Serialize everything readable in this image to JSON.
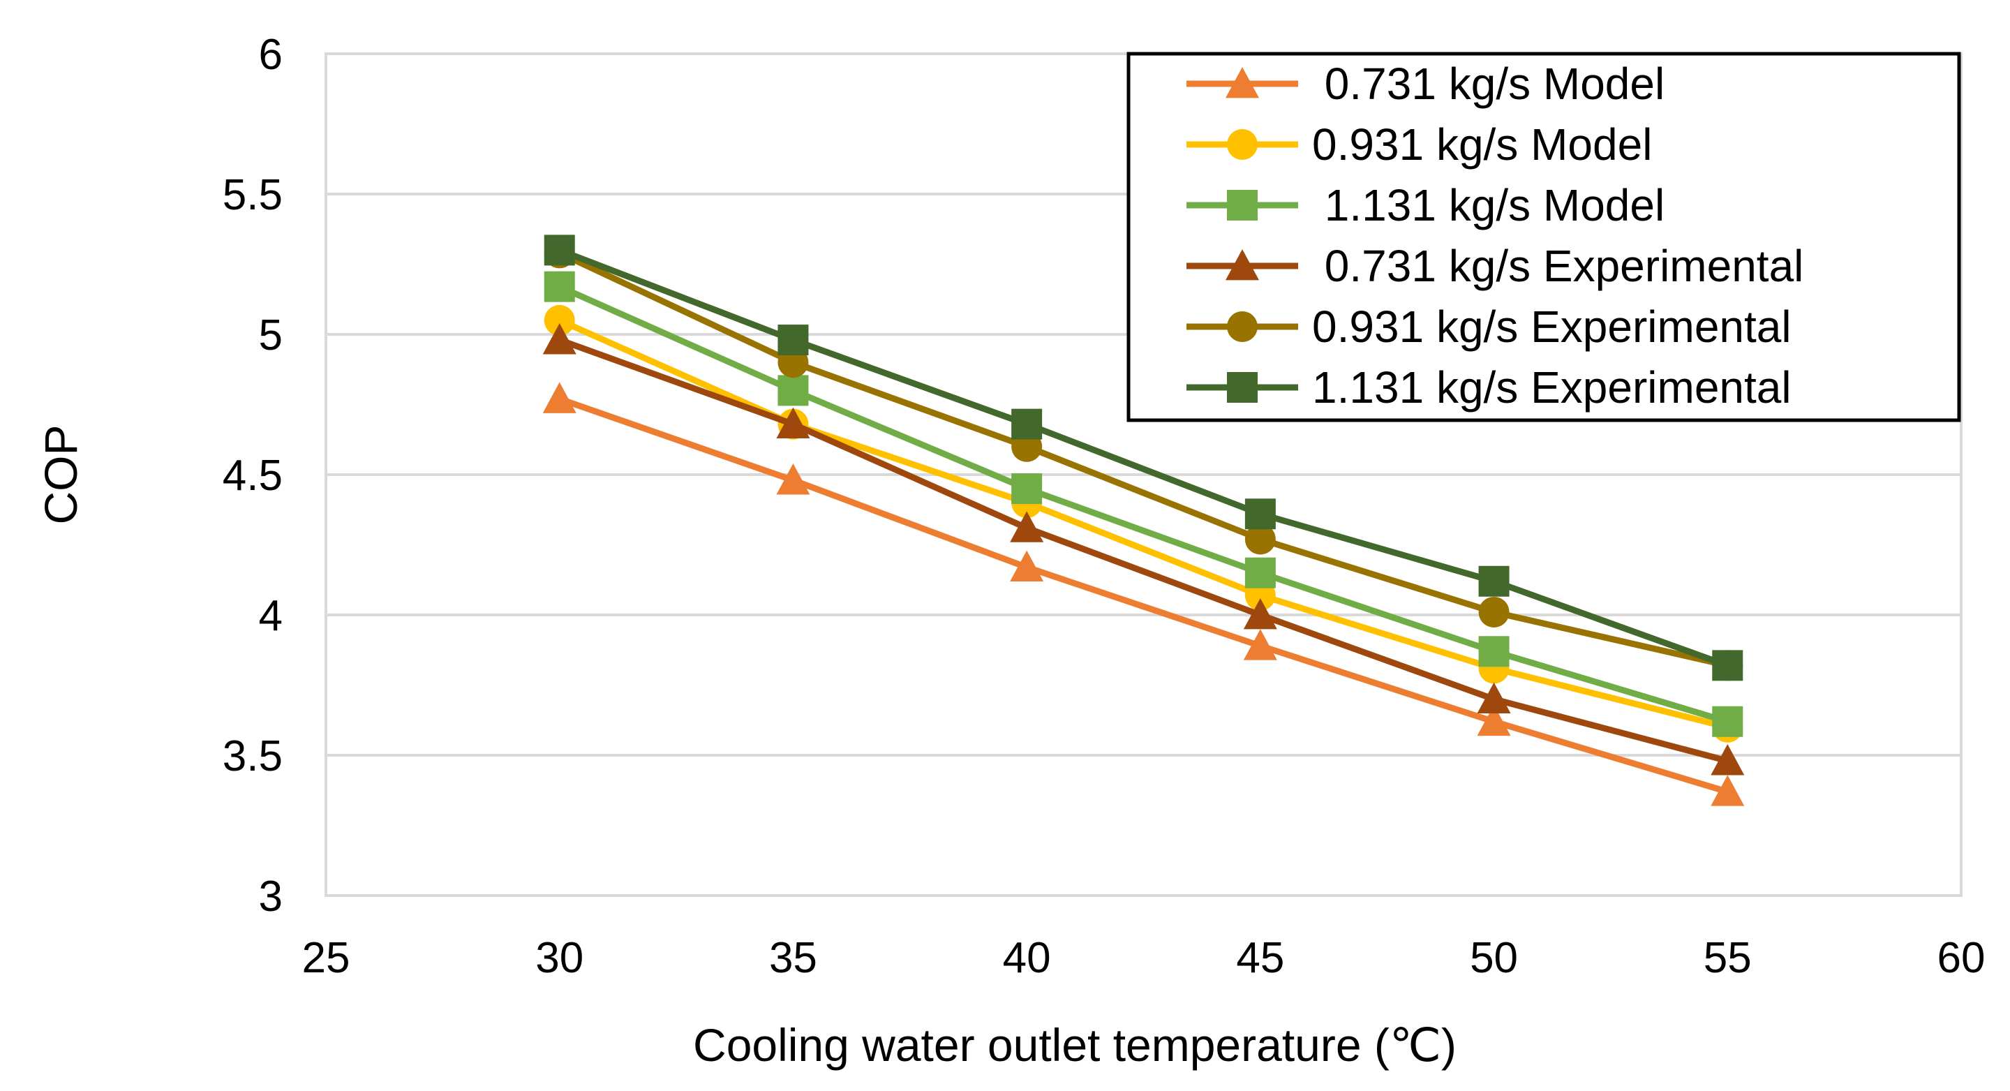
{
  "chart_data": {
    "type": "line",
    "title": "",
    "xlabel": "Cooling water outlet temperature (℃)",
    "ylabel": "COP",
    "xlim": [
      25,
      60
    ],
    "ylim": [
      3,
      6
    ],
    "xticks": [
      "25",
      "30",
      "35",
      "40",
      "45",
      "50",
      "55",
      "60"
    ],
    "yticks": [
      "3",
      "3.5",
      "4",
      "4.5",
      "5",
      "5.5",
      "6"
    ],
    "grid": "horizontal",
    "legend_position": "top-right",
    "x": [
      30,
      35,
      40,
      45,
      50,
      55
    ],
    "series": [
      {
        "name": " 0.731 kg/s Model",
        "marker": "triangle",
        "color": "#ED7D31",
        "values": [
          4.77,
          4.48,
          4.17,
          3.89,
          3.62,
          3.37
        ]
      },
      {
        "name": "0.931 kg/s Model",
        "marker": "circle",
        "color": "#FFC000",
        "values": [
          5.05,
          4.68,
          4.4,
          4.07,
          3.81,
          3.6
        ]
      },
      {
        "name": " 1.131 kg/s Model",
        "marker": "square",
        "color": "#70AD47",
        "values": [
          5.17,
          4.8,
          4.45,
          4.15,
          3.87,
          3.62
        ]
      },
      {
        "name": " 0.731 kg/s Experimental",
        "marker": "triangle",
        "color": "#9E480E",
        "values": [
          4.98,
          4.68,
          4.31,
          4.0,
          3.7,
          3.48
        ]
      },
      {
        "name": "0.931 kg/s Experimental",
        "marker": "circle",
        "color": "#997300",
        "values": [
          5.29,
          4.9,
          4.6,
          4.27,
          4.01,
          3.82
        ]
      },
      {
        "name": "1.131 kg/s Experimental",
        "marker": "square",
        "color": "#43682B",
        "values": [
          5.3,
          4.98,
          4.68,
          4.36,
          4.12,
          3.82
        ]
      }
    ]
  }
}
